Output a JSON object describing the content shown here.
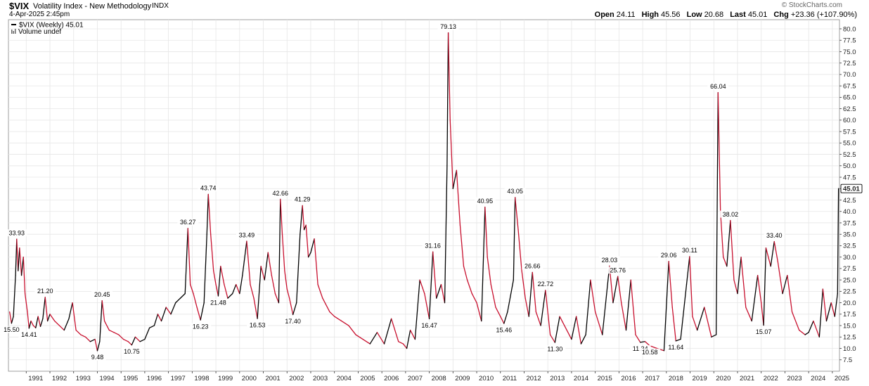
{
  "header": {
    "symbol": "$VIX",
    "name": "Volatility Index - New Methodology",
    "exchange": "INDX",
    "date": "4-Apr-2025 2:45pm",
    "watermark": "© StockCharts.com",
    "open_label": "Open",
    "open": "24.11",
    "high_label": "High",
    "high": "45.56",
    "low_label": "Low",
    "low": "20.68",
    "last_label": "Last",
    "last": "45.01",
    "chg_label": "Chg",
    "chg": "+23.36 (+107.90%)"
  },
  "legend": {
    "series": "$VIX (Weekly) 45.01",
    "volume": "Volume undef"
  },
  "colors": {
    "up": "#000000",
    "down": "#c8102e",
    "grid": "#e6e6e6",
    "axis": "#333333"
  },
  "chart_data": {
    "type": "line",
    "title": "",
    "xlabel": "",
    "ylabel": "",
    "x_ticks": [
      "1991",
      "1992",
      "1993",
      "1994",
      "1995",
      "1996",
      "1997",
      "1998",
      "1999",
      "2000",
      "2001",
      "2002",
      "2003",
      "2004",
      "2005",
      "2006",
      "2007",
      "2008",
      "2009",
      "2010",
      "2011",
      "2012",
      "2013",
      "2014",
      "2015",
      "2016",
      "2017",
      "2018",
      "2019",
      "2020",
      "2021",
      "2022",
      "2023",
      "2024",
      "2025"
    ],
    "y_ticks": [
      "7.5",
      "10.0",
      "12.5",
      "15.0",
      "17.5",
      "20.0",
      "22.5",
      "25.0",
      "27.5",
      "30.0",
      "32.5",
      "35.0",
      "37.5",
      "40.0",
      "42.5",
      "45.0",
      "47.5",
      "50.0",
      "52.5",
      "55.0",
      "57.5",
      "60.0",
      "62.5",
      "65.0",
      "67.5",
      "70.0",
      "72.5",
      "75.0",
      "77.5",
      "80.0"
    ],
    "ylim": [
      5.0,
      82.0
    ],
    "xlim": [
      1990.25,
      2025.3
    ],
    "last_value": "45.01",
    "grid": true,
    "series": [
      {
        "points": [
          [
            1990.3,
            18.0
          ],
          [
            1990.38,
            15.5
          ],
          [
            1990.46,
            17.0
          ],
          [
            1990.55,
            26.0
          ],
          [
            1990.6,
            33.93
          ],
          [
            1990.66,
            27.0
          ],
          [
            1990.72,
            32.0
          ],
          [
            1990.8,
            26.0
          ],
          [
            1990.88,
            30.0
          ],
          [
            1990.95,
            22.0
          ],
          [
            1991.05,
            18.0
          ],
          [
            1991.12,
            14.41
          ],
          [
            1991.2,
            16.0
          ],
          [
            1991.3,
            15.0
          ],
          [
            1991.4,
            14.5
          ],
          [
            1991.5,
            17.0
          ],
          [
            1991.6,
            14.8
          ],
          [
            1991.7,
            16.5
          ],
          [
            1991.8,
            21.2
          ],
          [
            1991.9,
            16.0
          ],
          [
            1992.0,
            17.5
          ],
          [
            1992.2,
            16.0
          ],
          [
            1992.4,
            15.0
          ],
          [
            1992.6,
            14.0
          ],
          [
            1992.8,
            16.5
          ],
          [
            1992.95,
            20.0
          ],
          [
            1993.1,
            14.0
          ],
          [
            1993.3,
            13.0
          ],
          [
            1993.5,
            12.5
          ],
          [
            1993.7,
            11.5
          ],
          [
            1993.9,
            12.0
          ],
          [
            1994.0,
            9.48
          ],
          [
            1994.1,
            11.5
          ],
          [
            1994.2,
            20.45
          ],
          [
            1994.3,
            16.0
          ],
          [
            1994.5,
            14.0
          ],
          [
            1994.7,
            13.5
          ],
          [
            1994.9,
            13.0
          ],
          [
            1995.1,
            12.0
          ],
          [
            1995.3,
            11.5
          ],
          [
            1995.45,
            10.75
          ],
          [
            1995.6,
            12.5
          ],
          [
            1995.8,
            11.5
          ],
          [
            1996.0,
            12.0
          ],
          [
            1996.2,
            14.5
          ],
          [
            1996.4,
            15.0
          ],
          [
            1996.55,
            17.5
          ],
          [
            1996.7,
            16.0
          ],
          [
            1996.9,
            19.0
          ],
          [
            1997.1,
            17.5
          ],
          [
            1997.3,
            20.0
          ],
          [
            1997.5,
            21.0
          ],
          [
            1997.7,
            22.0
          ],
          [
            1997.82,
            36.27
          ],
          [
            1997.92,
            24.0
          ],
          [
            1998.05,
            22.0
          ],
          [
            1998.2,
            19.0
          ],
          [
            1998.35,
            16.23
          ],
          [
            1998.5,
            20.0
          ],
          [
            1998.62,
            35.0
          ],
          [
            1998.68,
            43.74
          ],
          [
            1998.78,
            35.0
          ],
          [
            1998.9,
            27.0
          ],
          [
            1999.0,
            24.0
          ],
          [
            1999.1,
            21.48
          ],
          [
            1999.2,
            28.0
          ],
          [
            1999.35,
            24.0
          ],
          [
            1999.5,
            21.0
          ],
          [
            1999.7,
            22.0
          ],
          [
            1999.85,
            24.0
          ],
          [
            2000.0,
            22.0
          ],
          [
            2000.12,
            26.0
          ],
          [
            2000.3,
            33.49
          ],
          [
            2000.45,
            24.0
          ],
          [
            2000.6,
            21.0
          ],
          [
            2000.75,
            16.53
          ],
          [
            2000.9,
            28.0
          ],
          [
            2001.05,
            25.0
          ],
          [
            2001.2,
            31.0
          ],
          [
            2001.35,
            26.0
          ],
          [
            2001.5,
            22.0
          ],
          [
            2001.65,
            20.0
          ],
          [
            2001.72,
            42.66
          ],
          [
            2001.8,
            35.0
          ],
          [
            2001.9,
            27.0
          ],
          [
            2002.0,
            23.0
          ],
          [
            2002.1,
            21.0
          ],
          [
            2002.25,
            17.4
          ],
          [
            2002.4,
            20.0
          ],
          [
            2002.55,
            35.0
          ],
          [
            2002.65,
            41.29
          ],
          [
            2002.72,
            36.0
          ],
          [
            2002.8,
            37.0
          ],
          [
            2002.9,
            30.0
          ],
          [
            2003.0,
            31.0
          ],
          [
            2003.15,
            34.0
          ],
          [
            2003.3,
            24.0
          ],
          [
            2003.5,
            21.0
          ],
          [
            2003.8,
            18.0
          ],
          [
            2004.0,
            17.0
          ],
          [
            2004.3,
            16.0
          ],
          [
            2004.6,
            15.0
          ],
          [
            2004.9,
            13.0
          ],
          [
            2005.2,
            12.0
          ],
          [
            2005.5,
            11.0
          ],
          [
            2005.8,
            13.5
          ],
          [
            2006.1,
            11.0
          ],
          [
            2006.4,
            16.5
          ],
          [
            2006.7,
            11.5
          ],
          [
            2006.9,
            11.0
          ],
          [
            2007.05,
            10.0
          ],
          [
            2007.2,
            14.0
          ],
          [
            2007.4,
            12.0
          ],
          [
            2007.6,
            25.0
          ],
          [
            2007.8,
            22.0
          ],
          [
            2008.0,
            16.47
          ],
          [
            2008.15,
            31.16
          ],
          [
            2008.3,
            21.0
          ],
          [
            2008.5,
            24.0
          ],
          [
            2008.65,
            20.0
          ],
          [
            2008.75,
            50.0
          ],
          [
            2008.8,
            79.13
          ],
          [
            2008.88,
            60.0
          ],
          [
            2009.0,
            45.0
          ],
          [
            2009.15,
            49.0
          ],
          [
            2009.3,
            37.0
          ],
          [
            2009.45,
            28.0
          ],
          [
            2009.6,
            25.0
          ],
          [
            2009.8,
            22.0
          ],
          [
            2010.0,
            20.0
          ],
          [
            2010.2,
            16.0
          ],
          [
            2010.35,
            40.95
          ],
          [
            2010.45,
            30.0
          ],
          [
            2010.6,
            24.0
          ],
          [
            2010.8,
            19.0
          ],
          [
            2011.0,
            17.0
          ],
          [
            2011.15,
            15.46
          ],
          [
            2011.3,
            18.0
          ],
          [
            2011.55,
            25.0
          ],
          [
            2011.62,
            43.05
          ],
          [
            2011.75,
            36.0
          ],
          [
            2011.9,
            27.0
          ],
          [
            2012.05,
            21.0
          ],
          [
            2012.2,
            17.0
          ],
          [
            2012.35,
            26.66
          ],
          [
            2012.5,
            18.0
          ],
          [
            2012.7,
            15.0
          ],
          [
            2012.9,
            22.72
          ],
          [
            2013.1,
            13.0
          ],
          [
            2013.3,
            11.3
          ],
          [
            2013.5,
            17.0
          ],
          [
            2013.8,
            14.0
          ],
          [
            2014.0,
            12.0
          ],
          [
            2014.2,
            17.0
          ],
          [
            2014.4,
            11.0
          ],
          [
            2014.6,
            13.0
          ],
          [
            2014.8,
            25.0
          ],
          [
            2015.0,
            18.0
          ],
          [
            2015.3,
            13.0
          ],
          [
            2015.6,
            28.03
          ],
          [
            2015.75,
            20.0
          ],
          [
            2015.95,
            25.76
          ],
          [
            2016.1,
            20.0
          ],
          [
            2016.3,
            14.0
          ],
          [
            2016.5,
            25.0
          ],
          [
            2016.7,
            13.0
          ],
          [
            2016.9,
            11.34
          ],
          [
            2017.1,
            11.5
          ],
          [
            2017.3,
            10.58
          ],
          [
            2017.6,
            10.0
          ],
          [
            2017.9,
            9.5
          ],
          [
            2018.1,
            29.06
          ],
          [
            2018.25,
            19.0
          ],
          [
            2018.4,
            11.64
          ],
          [
            2018.6,
            12.0
          ],
          [
            2018.85,
            24.0
          ],
          [
            2018.98,
            30.11
          ],
          [
            2019.1,
            17.0
          ],
          [
            2019.3,
            14.0
          ],
          [
            2019.6,
            19.0
          ],
          [
            2019.9,
            12.5
          ],
          [
            2020.1,
            13.0
          ],
          [
            2020.18,
            66.04
          ],
          [
            2020.28,
            40.0
          ],
          [
            2020.4,
            30.0
          ],
          [
            2020.55,
            28.0
          ],
          [
            2020.7,
            38.02
          ],
          [
            2020.85,
            25.0
          ],
          [
            2021.0,
            22.0
          ],
          [
            2021.15,
            30.0
          ],
          [
            2021.35,
            19.0
          ],
          [
            2021.6,
            16.0
          ],
          [
            2021.85,
            26.0
          ],
          [
            2022.0,
            20.0
          ],
          [
            2022.1,
            15.07
          ],
          [
            2022.2,
            32.0
          ],
          [
            2022.4,
            28.0
          ],
          [
            2022.55,
            33.4
          ],
          [
            2022.7,
            29.0
          ],
          [
            2022.9,
            22.0
          ],
          [
            2023.1,
            26.0
          ],
          [
            2023.3,
            18.0
          ],
          [
            2023.6,
            14.0
          ],
          [
            2023.85,
            13.0
          ],
          [
            2024.0,
            13.5
          ],
          [
            2024.2,
            16.0
          ],
          [
            2024.45,
            12.5
          ],
          [
            2024.6,
            23.0
          ],
          [
            2024.75,
            16.0
          ],
          [
            2024.95,
            20.0
          ],
          [
            2025.1,
            17.0
          ],
          [
            2025.22,
            22.0
          ],
          [
            2025.26,
            45.01
          ]
        ]
      }
    ],
    "annotations": [
      {
        "x": 1990.6,
        "y": 33.93,
        "text": "33.93",
        "pos": "above"
      },
      {
        "x": 1990.38,
        "y": 15.5,
        "text": "15.50",
        "pos": "below"
      },
      {
        "x": 1991.8,
        "y": 21.2,
        "text": "21.20",
        "pos": "above"
      },
      {
        "x": 1991.12,
        "y": 14.41,
        "text": "14.41",
        "pos": "below"
      },
      {
        "x": 1994.2,
        "y": 20.45,
        "text": "20.45",
        "pos": "above"
      },
      {
        "x": 1994.0,
        "y": 9.48,
        "text": "9.48",
        "pos": "below"
      },
      {
        "x": 1995.45,
        "y": 10.75,
        "text": "10.75",
        "pos": "below"
      },
      {
        "x": 1997.82,
        "y": 36.27,
        "text": "36.27",
        "pos": "above"
      },
      {
        "x": 1998.35,
        "y": 16.23,
        "text": "16.23",
        "pos": "below"
      },
      {
        "x": 1998.68,
        "y": 43.74,
        "text": "43.74",
        "pos": "above"
      },
      {
        "x": 1999.1,
        "y": 21.48,
        "text": "21.48",
        "pos": "below"
      },
      {
        "x": 2000.3,
        "y": 33.49,
        "text": "33.49",
        "pos": "above"
      },
      {
        "x": 2000.75,
        "y": 16.53,
        "text": "16.53",
        "pos": "below"
      },
      {
        "x": 2001.72,
        "y": 42.66,
        "text": "42.66",
        "pos": "above"
      },
      {
        "x": 2002.25,
        "y": 17.4,
        "text": "17.40",
        "pos": "below"
      },
      {
        "x": 2002.65,
        "y": 41.29,
        "text": "41.29",
        "pos": "above"
      },
      {
        "x": 2008.15,
        "y": 31.16,
        "text": "31.16",
        "pos": "above"
      },
      {
        "x": 2008.0,
        "y": 16.47,
        "text": "16.47",
        "pos": "below"
      },
      {
        "x": 2008.8,
        "y": 79.13,
        "text": "79.13",
        "pos": "above"
      },
      {
        "x": 2010.35,
        "y": 40.95,
        "text": "40.95",
        "pos": "above"
      },
      {
        "x": 2011.15,
        "y": 15.46,
        "text": "15.46",
        "pos": "below"
      },
      {
        "x": 2011.62,
        "y": 43.05,
        "text": "43.05",
        "pos": "above"
      },
      {
        "x": 2012.35,
        "y": 26.66,
        "text": "26.66",
        "pos": "above"
      },
      {
        "x": 2012.9,
        "y": 22.72,
        "text": "22.72",
        "pos": "above"
      },
      {
        "x": 2013.3,
        "y": 11.3,
        "text": "11.30",
        "pos": "below"
      },
      {
        "x": 2015.6,
        "y": 28.03,
        "text": "28.03",
        "pos": "above"
      },
      {
        "x": 2015.95,
        "y": 25.76,
        "text": "25.76",
        "pos": "above"
      },
      {
        "x": 2016.9,
        "y": 11.34,
        "text": "11.34",
        "pos": "below"
      },
      {
        "x": 2017.3,
        "y": 10.58,
        "text": "10.58",
        "pos": "below"
      },
      {
        "x": 2018.1,
        "y": 29.06,
        "text": "29.06",
        "pos": "above"
      },
      {
        "x": 2018.4,
        "y": 11.64,
        "text": "11.64",
        "pos": "below"
      },
      {
        "x": 2018.98,
        "y": 30.11,
        "text": "30.11",
        "pos": "above"
      },
      {
        "x": 2020.18,
        "y": 66.04,
        "text": "66.04",
        "pos": "above"
      },
      {
        "x": 2020.7,
        "y": 38.02,
        "text": "38.02",
        "pos": "above"
      },
      {
        "x": 2022.1,
        "y": 15.07,
        "text": "15.07",
        "pos": "below"
      },
      {
        "x": 2022.55,
        "y": 33.4,
        "text": "33.40",
        "pos": "above"
      }
    ]
  }
}
